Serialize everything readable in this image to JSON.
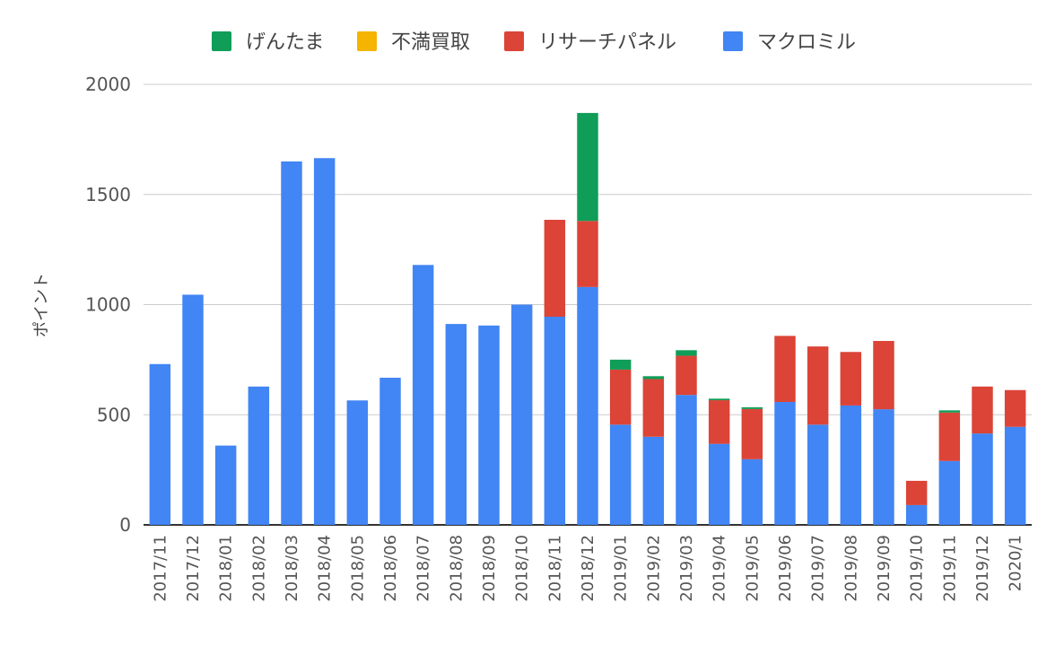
{
  "chart_data": {
    "type": "bar",
    "stacked": true,
    "title": "",
    "xlabel": "",
    "ylabel": "ポイント",
    "ylim": [
      0,
      2000
    ],
    "yticks": [
      0,
      500,
      1000,
      1500,
      2000
    ],
    "grid": true,
    "legend_position": "top",
    "categories": [
      "2017/11",
      "2017/12",
      "2018/01",
      "2018/02",
      "2018/03",
      "2018/04",
      "2018/05",
      "2018/06",
      "2018/07",
      "2018/08",
      "2018/09",
      "2018/10",
      "2018/11",
      "2018/12",
      "2019/01",
      "2019/02",
      "2019/03",
      "2019/04",
      "2019/05",
      "2019/06",
      "2019/07",
      "2019/08",
      "2019/09",
      "2019/10",
      "2019/11",
      "2019/12",
      "2020/1"
    ],
    "series": [
      {
        "name": "マクロミル",
        "color": "#4285f4",
        "values": [
          730,
          1045,
          360,
          628,
          1650,
          1665,
          565,
          668,
          1180,
          912,
          905,
          1000,
          945,
          1080,
          455,
          400,
          590,
          368,
          298,
          558,
          455,
          542,
          525,
          90,
          290,
          415,
          445
        ]
      },
      {
        "name": "リサーチパネル",
        "color": "#db4437",
        "values": [
          0,
          0,
          0,
          0,
          0,
          0,
          0,
          0,
          0,
          0,
          0,
          0,
          440,
          300,
          250,
          262,
          178,
          198,
          228,
          300,
          355,
          243,
          310,
          110,
          220,
          213,
          167
        ]
      },
      {
        "name": "不満買取",
        "color": "#f4b400",
        "values": [
          0,
          0,
          0,
          0,
          0,
          0,
          0,
          0,
          0,
          0,
          0,
          0,
          0,
          0,
          0,
          0,
          0,
          0,
          0,
          0,
          0,
          0,
          0,
          0,
          0,
          0,
          0
        ]
      },
      {
        "name": "げんたま",
        "color": "#0f9d58",
        "values": [
          0,
          0,
          0,
          0,
          0,
          0,
          0,
          0,
          0,
          0,
          0,
          0,
          0,
          490,
          45,
          13,
          25,
          7,
          8,
          0,
          0,
          0,
          0,
          0,
          10,
          0,
          0
        ]
      }
    ],
    "legend_order": [
      "げんたま",
      "不満買取",
      "リサーチパネル",
      "マクロミル"
    ]
  }
}
